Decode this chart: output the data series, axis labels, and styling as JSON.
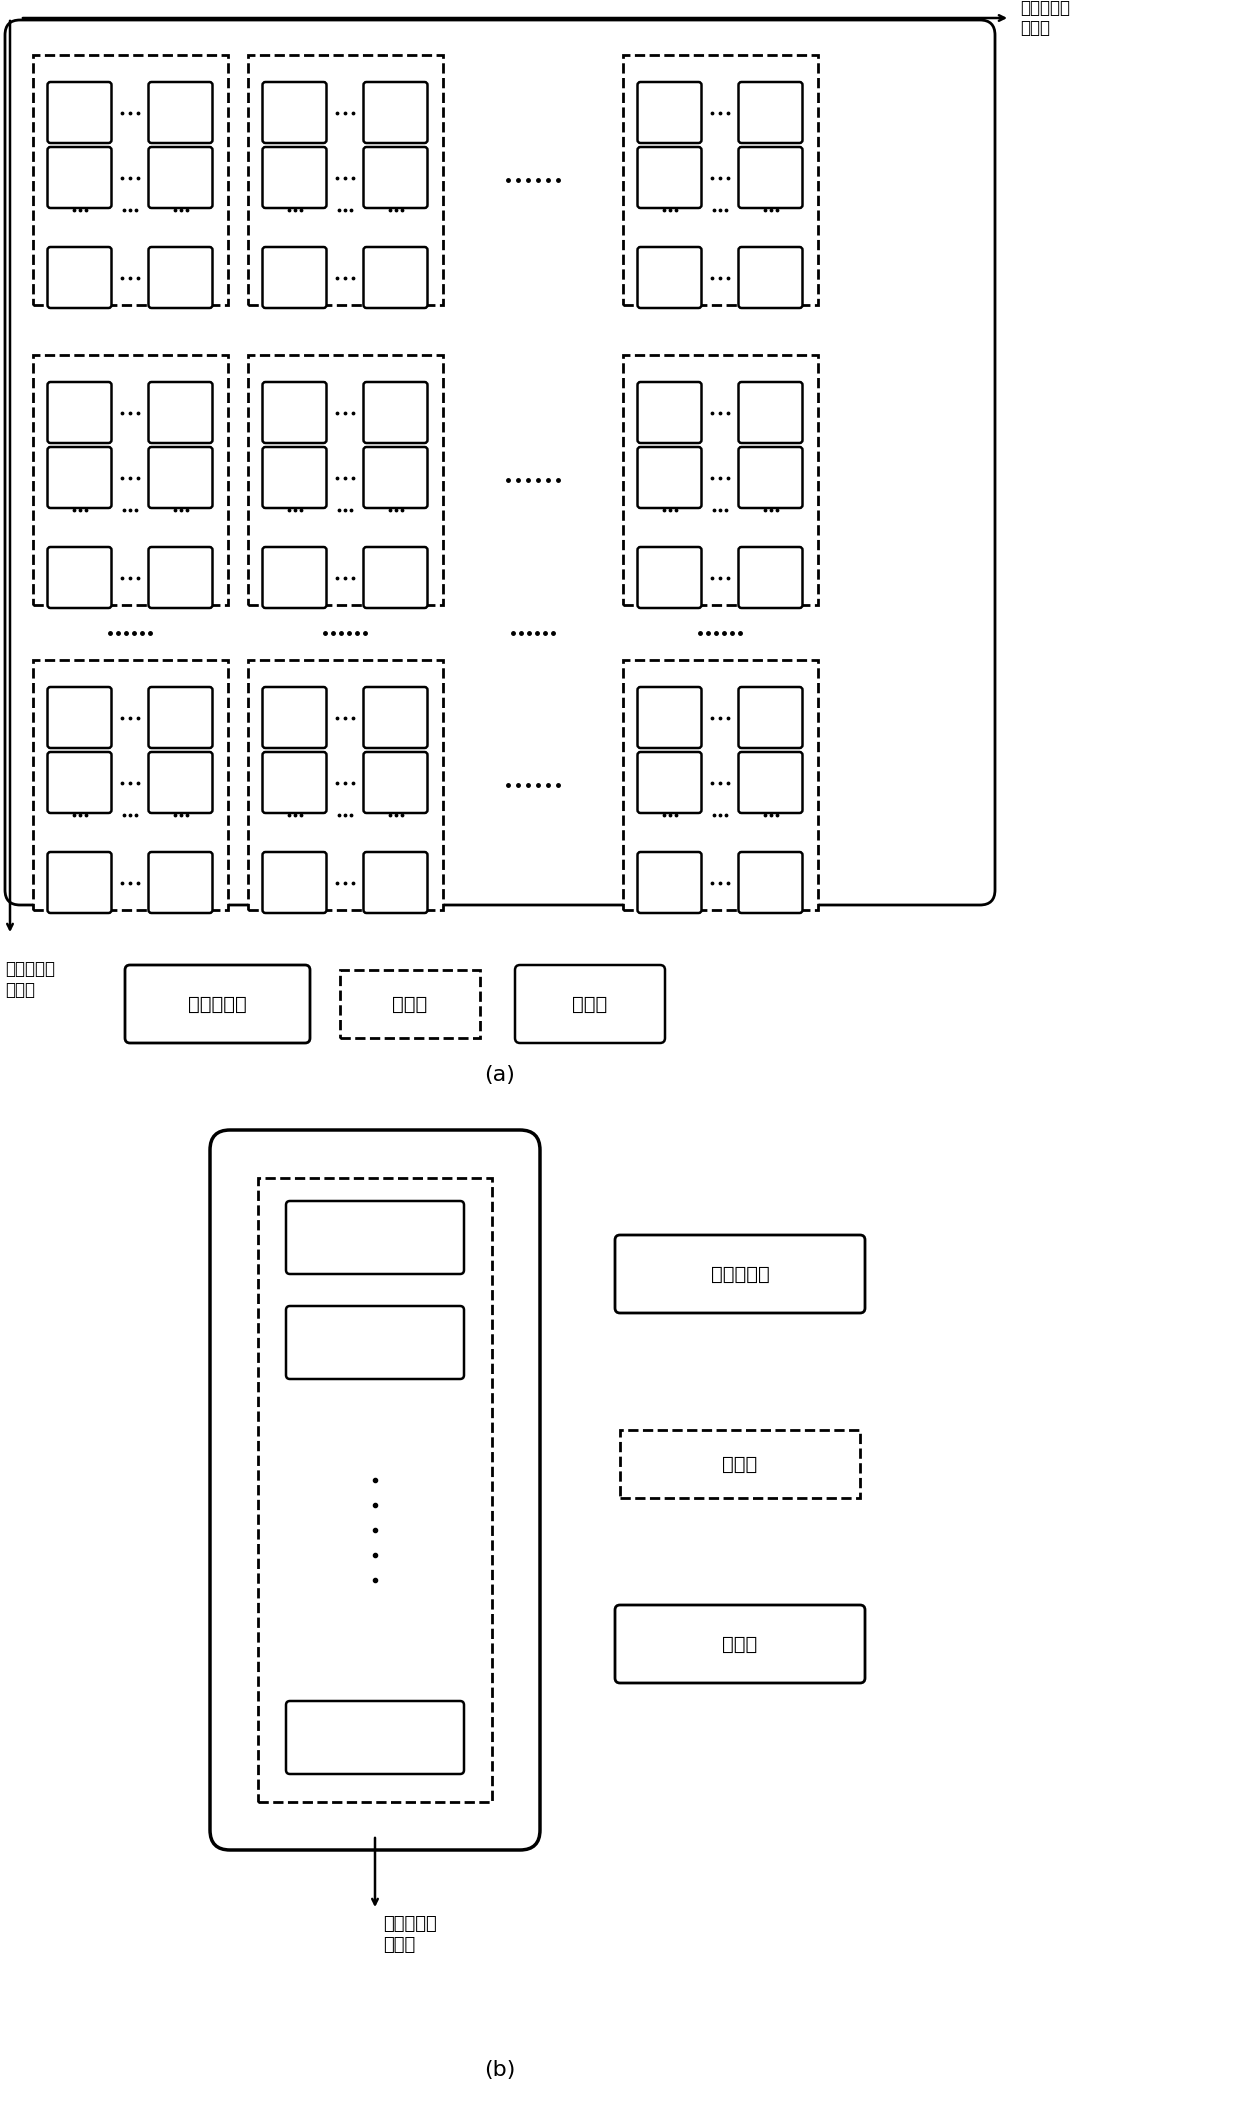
{
  "fig_width": 12.4,
  "fig_height": 21.18,
  "bg_color": "#ffffff",
  "label_a": "(a)",
  "label_b": "(b)",
  "col_arrow_label": "工作项全局\n列索引",
  "row_arrow_label_a": "工作项全局\n行索引",
  "row_arrow_label_b": "工作项全局\n行索引",
  "leg_all": "全体工作项",
  "leg_group": "工作组",
  "leg_item": "工作项"
}
